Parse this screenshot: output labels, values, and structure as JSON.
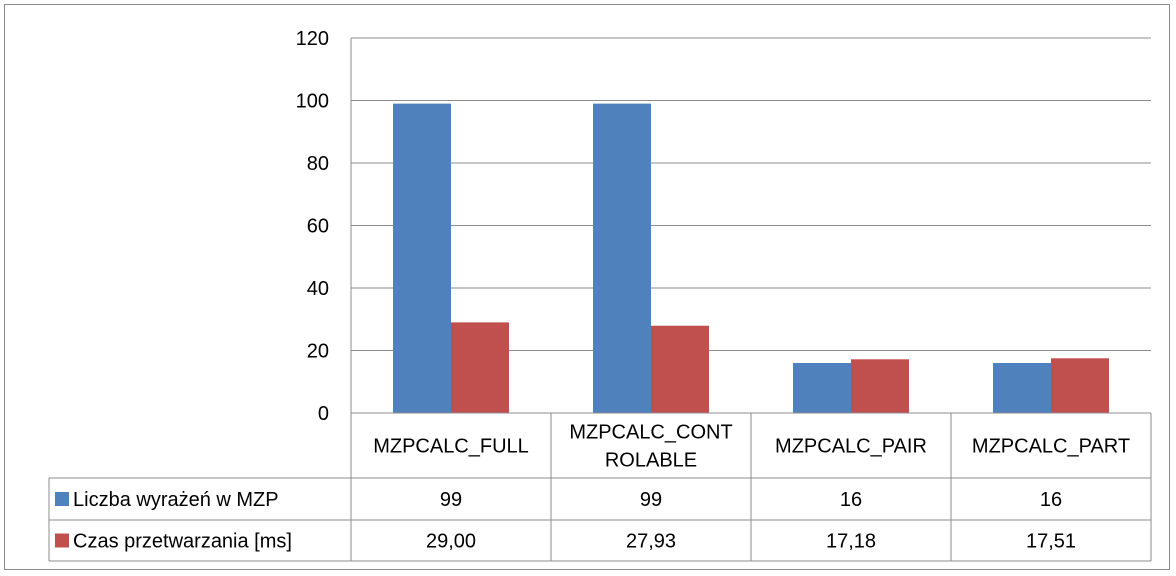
{
  "chart_data": {
    "type": "bar",
    "title": "",
    "xlabel": "",
    "ylabel": "",
    "ylim": [
      0,
      120
    ],
    "yticks": [
      "0",
      "20",
      "40",
      "60",
      "80",
      "100",
      "120"
    ],
    "grid": true,
    "legend_placement": "data-table",
    "categories": [
      [
        "MZPCALC_FULL"
      ],
      [
        "MZPCALC_CONT",
        "ROLABLE"
      ],
      [
        "MZPCALC_PAIR"
      ],
      [
        "MZPCALC_PART"
      ]
    ],
    "series": [
      {
        "name": "Liczba wyrażeń w MZP",
        "color": "#4f81bd",
        "values": [
          99,
          99,
          16,
          16
        ],
        "labels": [
          "99",
          "99",
          "16",
          "16"
        ]
      },
      {
        "name": "Czas przetwarzania [ms]",
        "color": "#c0504d",
        "values": [
          29.0,
          27.93,
          17.18,
          17.51
        ],
        "labels": [
          "29,00",
          "27,93",
          "17,18",
          "17,51"
        ]
      }
    ]
  }
}
